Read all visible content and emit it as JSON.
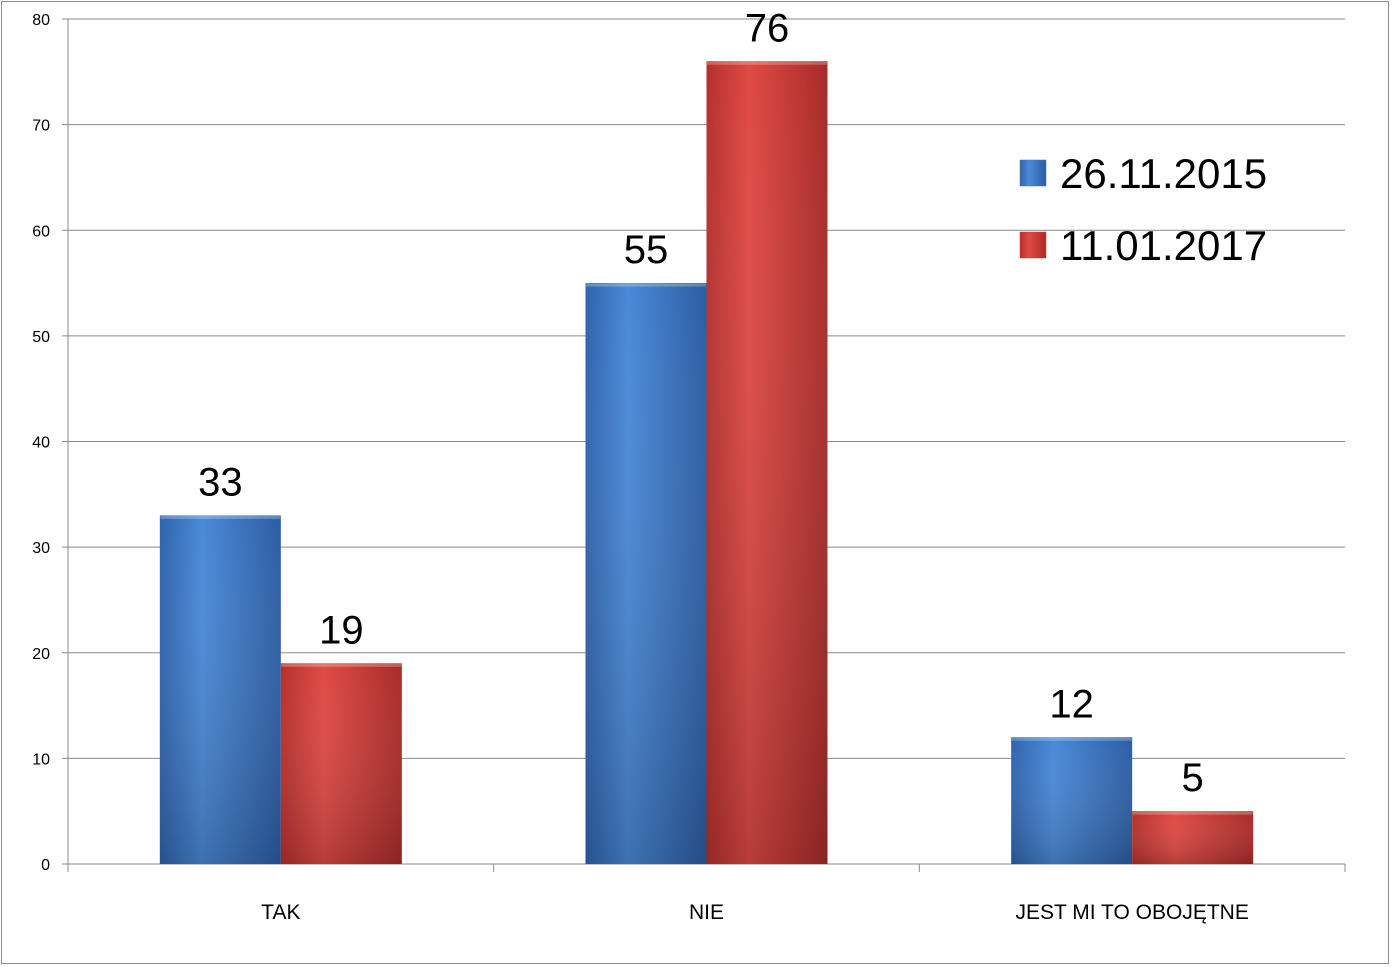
{
  "chart_data": {
    "type": "bar",
    "title": "",
    "xlabel": "",
    "ylabel": "",
    "categories": [
      "TAK",
      "NIE",
      "JEST MI TO OBOJĘTNE"
    ],
    "series": [
      {
        "name": "26.11.2015",
        "values": [
          33,
          55,
          12
        ],
        "color": "#3a77cc"
      },
      {
        "name": "11.01.2017",
        "values": [
          19,
          76,
          5
        ],
        "color": "#cf3a36"
      }
    ],
    "ylim": [
      0,
      80
    ],
    "yticks": [
      "0",
      "10",
      "20",
      "30",
      "40",
      "50",
      "60",
      "70",
      "80"
    ],
    "grid": true,
    "legend_position": "top-right",
    "data_labels": true
  }
}
